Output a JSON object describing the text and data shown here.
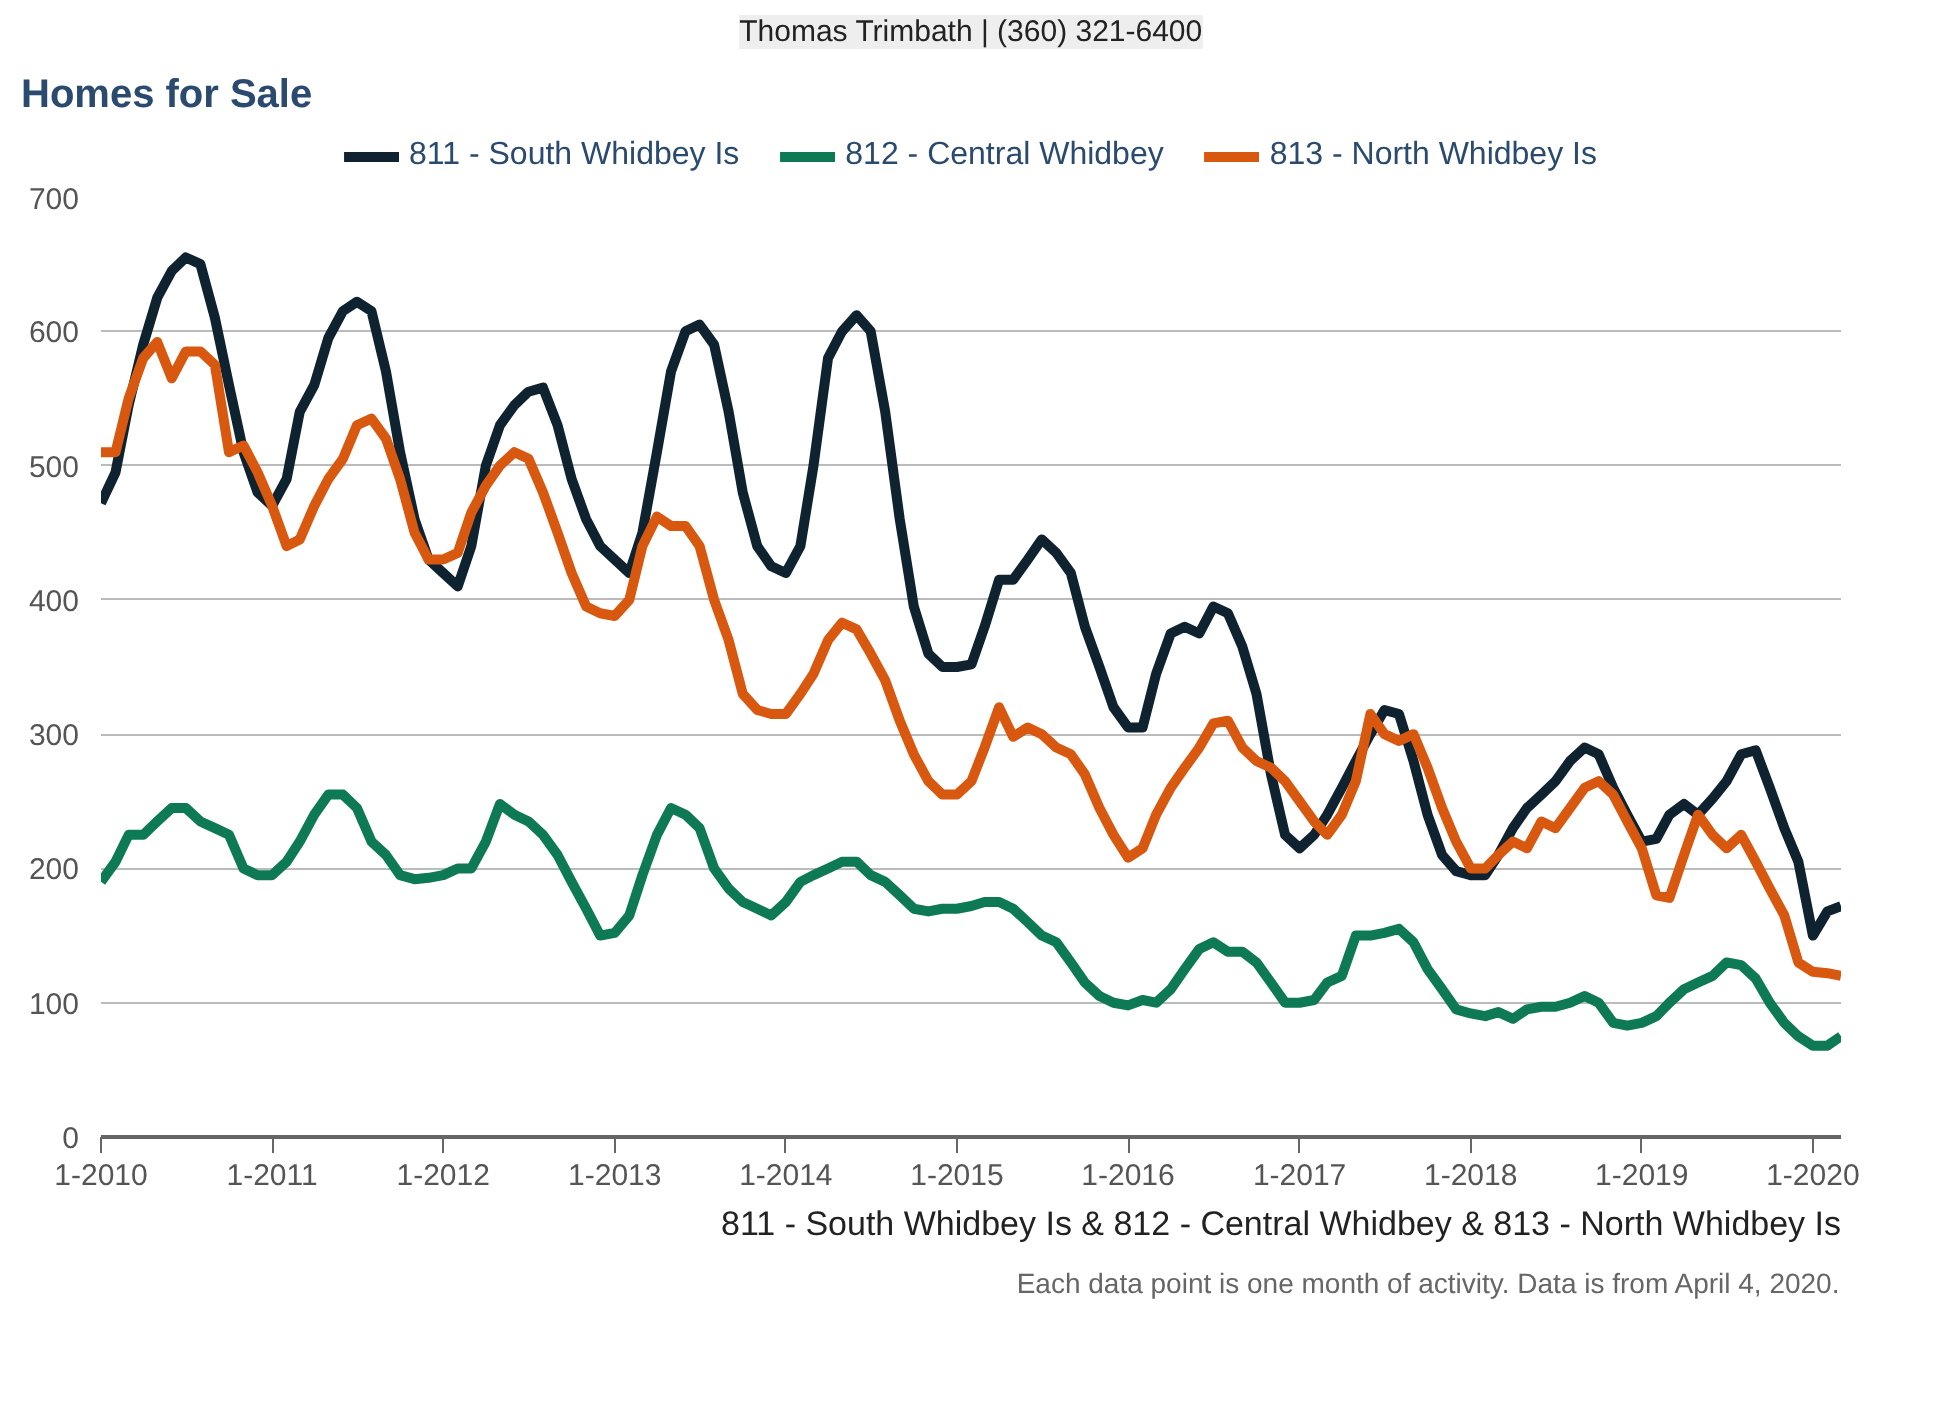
{
  "chart_data": {
    "type": "line",
    "title": "Homes for Sale",
    "annotations": [
      "Thomas Trimbath | (360) 321-6400",
      "811 - South Whidbey Is & 812 - Central Whidbey & 813 - North Whidbey Is",
      "Each data point is one month of activity. Data is from April 4, 2020."
    ],
    "x": [
      "2010-01",
      "2010-02",
      "2010-03",
      "2010-04",
      "2010-05",
      "2010-06",
      "2010-07",
      "2010-08",
      "2010-09",
      "2010-10",
      "2010-11",
      "2010-12",
      "2011-01",
      "2011-02",
      "2011-03",
      "2011-04",
      "2011-05",
      "2011-06",
      "2011-07",
      "2011-08",
      "2011-09",
      "2011-10",
      "2011-11",
      "2011-12",
      "2012-01",
      "2012-02",
      "2012-03",
      "2012-04",
      "2012-05",
      "2012-06",
      "2012-07",
      "2012-08",
      "2012-09",
      "2012-10",
      "2012-11",
      "2012-12",
      "2013-01",
      "2013-02",
      "2013-03",
      "2013-04",
      "2013-05",
      "2013-06",
      "2013-07",
      "2013-08",
      "2013-09",
      "2013-10",
      "2013-11",
      "2013-12",
      "2014-01",
      "2014-02",
      "2014-03",
      "2014-04",
      "2014-05",
      "2014-06",
      "2014-07",
      "2014-08",
      "2014-09",
      "2014-10",
      "2014-11",
      "2014-12",
      "2015-01",
      "2015-02",
      "2015-03",
      "2015-04",
      "2015-05",
      "2015-06",
      "2015-07",
      "2015-08",
      "2015-09",
      "2015-10",
      "2015-11",
      "2015-12",
      "2016-01",
      "2016-02",
      "2016-03",
      "2016-04",
      "2016-05",
      "2016-06",
      "2016-07",
      "2016-08",
      "2016-09",
      "2016-10",
      "2016-11",
      "2016-12",
      "2017-01",
      "2017-02",
      "2017-03",
      "2017-04",
      "2017-05",
      "2017-06",
      "2017-07",
      "2017-08",
      "2017-09",
      "2017-10",
      "2017-11",
      "2017-12",
      "2018-01",
      "2018-02",
      "2018-03",
      "2018-04",
      "2018-05",
      "2018-06",
      "2018-07",
      "2018-08",
      "2018-09",
      "2018-10",
      "2018-11",
      "2018-12",
      "2019-01",
      "2019-02",
      "2019-03",
      "2019-04",
      "2019-05",
      "2019-06",
      "2019-07",
      "2019-08",
      "2019-09",
      "2019-10",
      "2019-11",
      "2019-12",
      "2020-01",
      "2020-02",
      "2020-03"
    ],
    "series": [
      {
        "name": "811 - South Whidbey Is",
        "color": "#0f2230",
        "values": [
          472,
          495,
          545,
          590,
          625,
          645,
          655,
          650,
          610,
          560,
          510,
          480,
          470,
          490,
          540,
          560,
          595,
          615,
          622,
          615,
          570,
          510,
          460,
          430,
          420,
          410,
          440,
          500,
          530,
          545,
          555,
          558,
          530,
          490,
          460,
          440,
          430,
          420,
          450,
          510,
          570,
          600,
          605,
          590,
          540,
          480,
          440,
          425,
          420,
          440,
          500,
          580,
          600,
          612,
          600,
          540,
          460,
          395,
          360,
          350,
          350,
          352,
          380,
          415,
          415,
          430,
          445,
          435,
          420,
          380,
          350,
          320,
          305,
          305,
          345,
          375,
          380,
          375,
          395,
          390,
          365,
          330,
          270,
          225,
          215,
          225,
          240,
          260,
          280,
          300,
          318,
          315,
          280,
          240,
          210,
          198,
          195,
          195,
          210,
          230,
          245,
          255,
          265,
          280,
          290,
          285,
          260,
          240,
          220,
          222,
          240,
          248,
          240,
          252,
          265,
          285,
          288,
          260,
          230,
          205,
          150,
          168,
          172
        ]
      },
      {
        "name": "812 - Central Whidbey",
        "color": "#0e7a55",
        "values": [
          190,
          205,
          225,
          225,
          235,
          245,
          245,
          235,
          230,
          225,
          200,
          195,
          195,
          205,
          220,
          240,
          255,
          255,
          245,
          220,
          210,
          195,
          192,
          193,
          195,
          200,
          200,
          220,
          248,
          240,
          235,
          225,
          210,
          190,
          170,
          150,
          152,
          165,
          195,
          225,
          245,
          240,
          230,
          200,
          185,
          175,
          170,
          165,
          175,
          190,
          195,
          200,
          205,
          205,
          195,
          190,
          180,
          170,
          168,
          170,
          170,
          172,
          175,
          175,
          170,
          160,
          150,
          145,
          130,
          115,
          105,
          100,
          98,
          102,
          100,
          110,
          125,
          140,
          145,
          138,
          138,
          130,
          115,
          100,
          100,
          102,
          115,
          120,
          150,
          150,
          152,
          155,
          145,
          125,
          110,
          95,
          92,
          90,
          93,
          88,
          95,
          97,
          97,
          100,
          105,
          100,
          85,
          83,
          85,
          90,
          100,
          110,
          115,
          120,
          130,
          128,
          118,
          100,
          85,
          75,
          68,
          68,
          75
        ]
      },
      {
        "name": "813 - North Whidbey Is",
        "color": "#d9580f",
        "values": [
          510,
          510,
          550,
          580,
          592,
          565,
          585,
          585,
          575,
          510,
          515,
          495,
          470,
          440,
          445,
          470,
          490,
          505,
          530,
          535,
          520,
          490,
          450,
          430,
          430,
          435,
          465,
          485,
          500,
          510,
          505,
          480,
          450,
          420,
          395,
          390,
          388,
          400,
          440,
          462,
          455,
          455,
          440,
          400,
          370,
          330,
          318,
          315,
          315,
          330,
          345,
          370,
          383,
          378,
          360,
          340,
          310,
          285,
          265,
          255,
          255,
          265,
          290,
          320,
          298,
          305,
          300,
          290,
          285,
          270,
          245,
          225,
          208,
          215,
          240,
          260,
          275,
          290,
          308,
          310,
          290,
          280,
          275,
          265,
          250,
          235,
          225,
          240,
          265,
          315,
          300,
          295,
          300,
          275,
          245,
          220,
          200,
          200,
          210,
          220,
          215,
          235,
          230,
          245,
          260,
          265,
          255,
          235,
          215,
          180,
          178,
          210,
          240,
          225,
          215,
          225,
          205,
          185,
          165,
          130,
          123,
          122,
          120
        ]
      }
    ],
    "xlim": [
      "2010-01",
      "2020-03"
    ],
    "xticks": [
      {
        "value": "2010-01",
        "label": "1-2010"
      },
      {
        "value": "2011-01",
        "label": "1-2011"
      },
      {
        "value": "2012-01",
        "label": "1-2012"
      },
      {
        "value": "2013-01",
        "label": "1-2013"
      },
      {
        "value": "2014-01",
        "label": "1-2014"
      },
      {
        "value": "2015-01",
        "label": "1-2015"
      },
      {
        "value": "2016-01",
        "label": "1-2016"
      },
      {
        "value": "2017-01",
        "label": "1-2017"
      },
      {
        "value": "2018-01",
        "label": "1-2018"
      },
      {
        "value": "2019-01",
        "label": "1-2019"
      },
      {
        "value": "2020-01",
        "label": "1-2020"
      }
    ],
    "ylim": [
      0,
      700
    ],
    "yticks": [
      0,
      100,
      200,
      300,
      400,
      500,
      600,
      700
    ],
    "grid": "y",
    "legend": "top",
    "marker": "none",
    "line_style": "solid"
  }
}
